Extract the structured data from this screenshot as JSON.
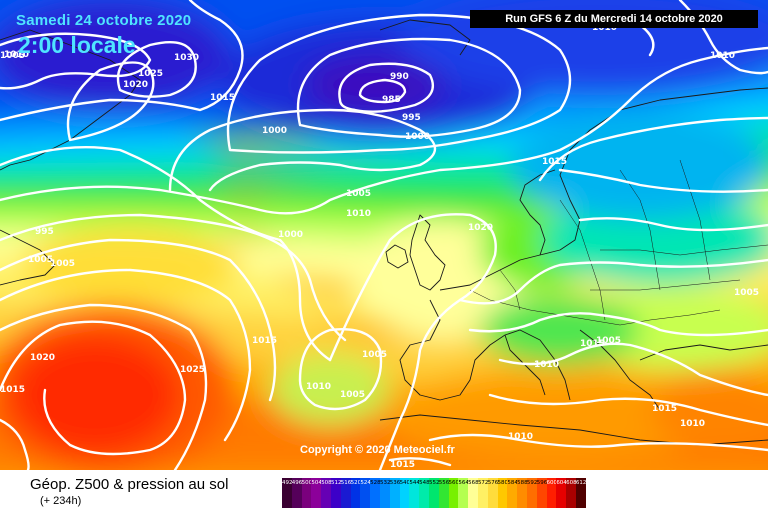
{
  "header": {
    "date": "Samedi 24 octobre 2020",
    "time": "2:00 locale",
    "run": "Run GFS 6 Z du Mercredi 14 octobre 2020"
  },
  "copyright": "Copyright © 2020 Meteociel.fr",
  "footer": {
    "title": "Géop. Z500 & pression au sol",
    "subtitle": "(+ 234h)"
  },
  "pressure_labels": [
    "1010",
    "1030",
    "1025",
    "1020",
    "1015",
    "990",
    "985",
    "995",
    "1000",
    "1000",
    "1015",
    "1010",
    "1005",
    "1010",
    "1000",
    "1020",
    "995",
    "1005",
    "1005",
    "1015",
    "1005",
    "1010",
    "1005",
    "1015",
    "1020",
    "1025",
    "1005",
    "1015",
    "1010",
    "1015",
    "1015",
    "1010",
    "1010",
    "1010",
    "1005",
    "1005"
  ],
  "scale": {
    "labels": [
      "492",
      "496",
      "500",
      "504",
      "508",
      "512",
      "516",
      "520",
      "524",
      "528",
      "532",
      "536",
      "540",
      "544",
      "548",
      "552",
      "556",
      "560",
      "564",
      "568",
      "572",
      "576",
      "580",
      "584",
      "588",
      "592",
      "596",
      "600",
      "604",
      "608",
      "612"
    ],
    "colors": [
      "#3a0032",
      "#55005a",
      "#7a007d",
      "#8c009a",
      "#6600b4",
      "#3c00c8",
      "#1a1ad2",
      "#0032e6",
      "#0050f0",
      "#0070ff",
      "#008cff",
      "#00b0ff",
      "#00d2ff",
      "#00e6dc",
      "#00ebaa",
      "#00e66e",
      "#32e632",
      "#78f000",
      "#b4ff50",
      "#ffff96",
      "#fff064",
      "#ffdc3c",
      "#ffc800",
      "#ffaa00",
      "#ff8c00",
      "#ff6e00",
      "#ff4600",
      "#ff1e00",
      "#e60000",
      "#aa0000",
      "#500000"
    ]
  }
}
